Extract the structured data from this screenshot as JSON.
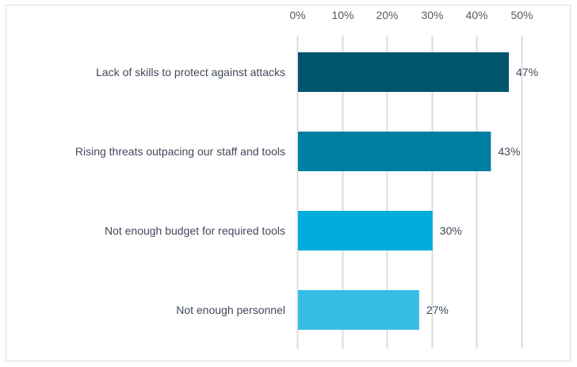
{
  "chart_data": {
    "type": "bar",
    "orientation": "horizontal",
    "title": "",
    "xlabel": "",
    "ylabel": "",
    "categories": [
      "Lack of skills to protect against attacks",
      "Rising threats outpacing our staff and tools",
      "Not enough budget for required tools",
      "Not enough personnel"
    ],
    "values": [
      47,
      43,
      30,
      27
    ],
    "value_labels": [
      "47%",
      "43%",
      "30%",
      "27%"
    ],
    "colors": [
      "#00546e",
      "#007ea1",
      "#00acdb",
      "#36bde3"
    ],
    "xlim": [
      0,
      50
    ],
    "x_ticks": [
      0,
      10,
      20,
      30,
      40,
      50
    ],
    "x_tick_labels": [
      "0%",
      "10%",
      "20%",
      "30%",
      "40%",
      "50%"
    ],
    "x_axis_position": "top",
    "grid": true,
    "grid_color": "#d9dde3",
    "legend": "none"
  }
}
